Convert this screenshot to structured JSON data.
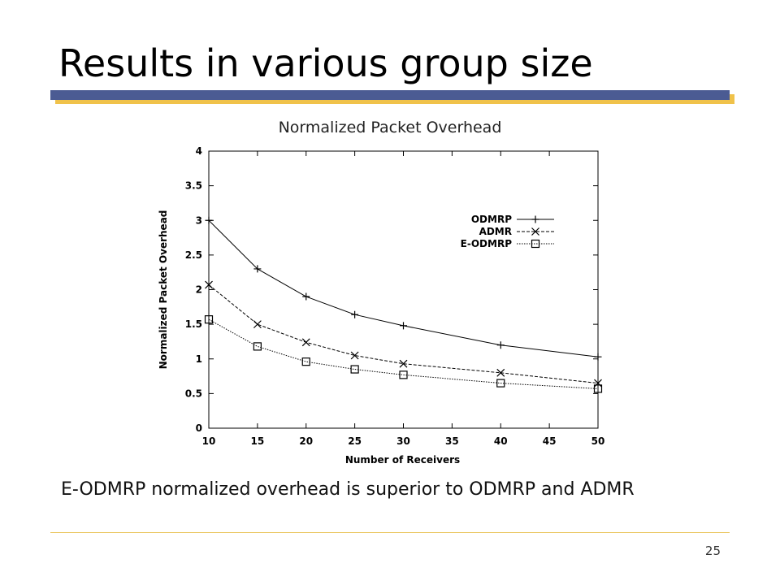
{
  "slide": {
    "title": "Results in various group size",
    "chart_heading": "Normalized Packet Overhead",
    "caption": "E-ODMRP normalized overhead is superior to ODMRP and ADMR",
    "page_number": "25"
  },
  "colors": {
    "title_bar": "#4b5b93",
    "title_bar_shadow": "#f0c24a",
    "footer_rule": "#e9c45a",
    "series_line": "#000000"
  },
  "chart_data": {
    "type": "line",
    "xlabel": "Number of Receivers",
    "ylabel": "Normalized Packet Overhead",
    "xlim": [
      10,
      50
    ],
    "ylim": [
      0,
      4
    ],
    "xticks": [
      "10",
      "15",
      "20",
      "25",
      "30",
      "35",
      "40",
      "45",
      "50"
    ],
    "yticks": [
      "0",
      "0.5",
      "1",
      "1.5",
      "2",
      "2.5",
      "3",
      "3.5",
      "4"
    ],
    "legend_position": "top-right",
    "grid": false,
    "series": [
      {
        "name": "ODMRP",
        "marker": "plus",
        "line_style": "solid",
        "x": [
          10,
          15,
          20,
          25,
          30,
          40,
          50
        ],
        "y": [
          3.0,
          2.3,
          1.9,
          1.64,
          1.48,
          1.2,
          1.03
        ]
      },
      {
        "name": "ADMR",
        "marker": "cross",
        "line_style": "dashed",
        "x": [
          10,
          15,
          20,
          25,
          30,
          40,
          50
        ],
        "y": [
          2.07,
          1.5,
          1.24,
          1.05,
          0.93,
          0.8,
          0.65
        ]
      },
      {
        "name": "E-ODMRP",
        "marker": "square",
        "line_style": "dotted",
        "x": [
          10,
          15,
          20,
          25,
          30,
          40,
          50
        ],
        "y": [
          1.57,
          1.18,
          0.96,
          0.85,
          0.77,
          0.65,
          0.57
        ]
      }
    ]
  }
}
